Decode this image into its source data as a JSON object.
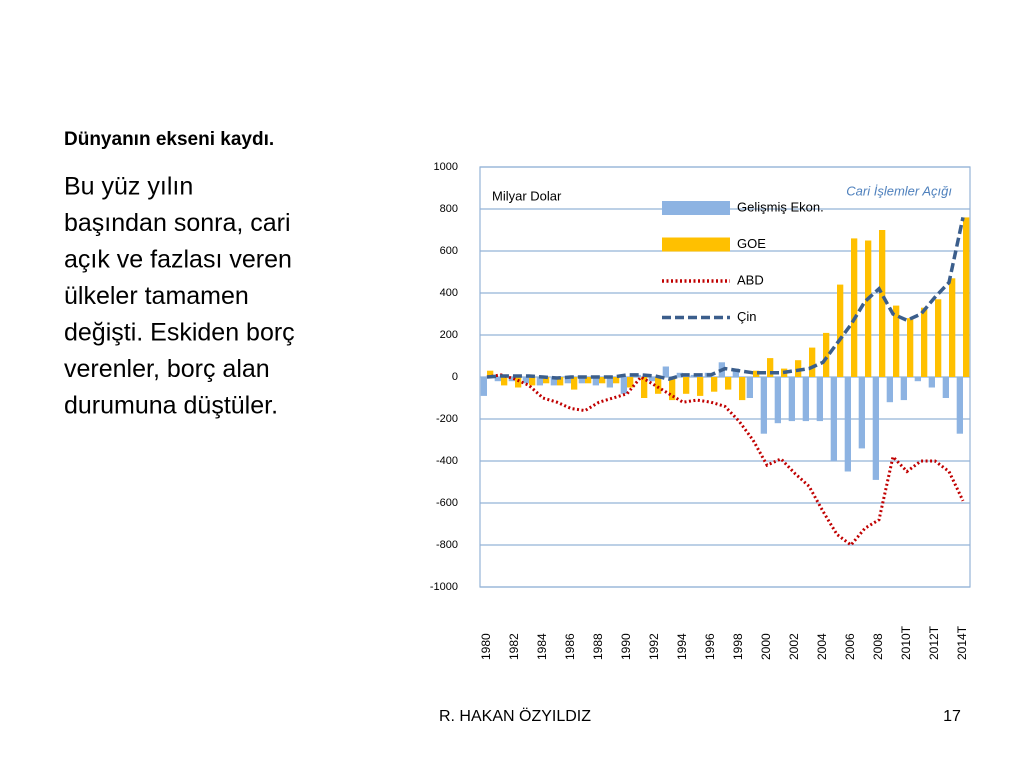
{
  "slide": {
    "heading": "Dünyanın ekseni kaydı.",
    "body_lines": [
      "Bu yüz yılın",
      "başından sonra, cari",
      "açık ve fazlası veren",
      "ülkeler tamamen",
      "değişti. Eskiden borç",
      "verenler, borç alan",
      "durumuna düştüler."
    ],
    "footer": "R. HAKAN ÖZYILDIZ",
    "page": "17"
  },
  "chart_data": {
    "type": "bar",
    "unit_label": "Milyar Dolar",
    "title": "Cari İşlemler Açığı",
    "categories": [
      "1980",
      null,
      "1982",
      null,
      "1984",
      null,
      "1986",
      null,
      "1988",
      null,
      "1990",
      null,
      "1992",
      null,
      "1994",
      null,
      "1996",
      null,
      "1998",
      null,
      "2000",
      null,
      "2002",
      null,
      "2004",
      null,
      "2006",
      null,
      "2008",
      null,
      "2010T",
      null,
      "2012T",
      null,
      "2014T"
    ],
    "ylim": [
      -1000,
      1000
    ],
    "yticks": [
      -1000,
      -800,
      -600,
      -400,
      -200,
      0,
      200,
      400,
      600,
      800,
      1000
    ],
    "grid": true,
    "series": [
      {
        "name": "Gelişmiş Ekon.",
        "type": "bar",
        "color": "#8db3e2",
        "values": [
          -90,
          -20,
          -20,
          -30,
          -40,
          -40,
          -30,
          -30,
          -40,
          -50,
          -80,
          10,
          -20,
          50,
          20,
          10,
          20,
          70,
          40,
          -100,
          -270,
          -220,
          -210,
          -210,
          -210,
          -400,
          -450,
          -340,
          -490,
          -120,
          -110,
          -20,
          -50,
          -100,
          -270
        ]
      },
      {
        "name": "GOE",
        "type": "bar",
        "color": "#ffc000",
        "values": [
          30,
          -40,
          -50,
          -40,
          -30,
          -40,
          -60,
          -30,
          -30,
          -30,
          -50,
          -100,
          -80,
          -110,
          -80,
          -90,
          -70,
          -60,
          -110,
          30,
          90,
          40,
          80,
          140,
          210,
          440,
          660,
          650,
          700,
          340,
          280,
          330,
          370,
          470,
          760
        ]
      },
      {
        "name": "ABD",
        "type": "line",
        "style": "dotted",
        "color": "#c00000",
        "values": [
          0,
          10,
          -10,
          -40,
          -100,
          -120,
          -150,
          -160,
          -120,
          -100,
          -80,
          0,
          -40,
          -80,
          -120,
          -110,
          -120,
          -140,
          -210,
          -300,
          -420,
          -390,
          -460,
          -520,
          -640,
          -750,
          -800,
          -720,
          -680,
          -380,
          -450,
          -400,
          -400,
          -450,
          -590
        ]
      },
      {
        "name": "Çin",
        "type": "line",
        "style": "dashed",
        "color": "#3b5e8c",
        "values": [
          0,
          5,
          5,
          5,
          0,
          -5,
          0,
          0,
          0,
          0,
          10,
          10,
          5,
          -10,
          10,
          10,
          10,
          40,
          30,
          20,
          20,
          20,
          30,
          40,
          70,
          160,
          250,
          360,
          420,
          300,
          270,
          300,
          380,
          450,
          760
        ]
      }
    ]
  }
}
